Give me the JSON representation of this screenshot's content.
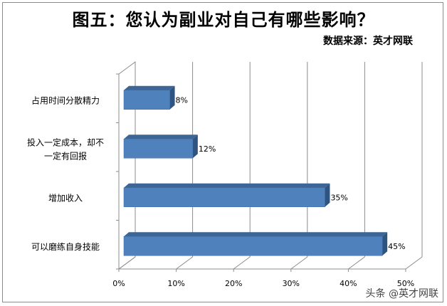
{
  "title": "图五：您认为副业对自己有哪些影响？",
  "source": "数据来源：英才网联",
  "watermark": "头条 @英才网联",
  "chart_data": {
    "type": "bar",
    "orientation": "horizontal",
    "style": "3d",
    "title": "图五：您认为副业对自己有哪些影响？",
    "subtitle": "数据来源：英才网联",
    "categories": [
      "占用时间分散精力",
      "投入一定成本，却不一定有回报",
      "增加收入",
      "可以磨练自身技能"
    ],
    "category_lines": [
      [
        "占用时间分散精力"
      ],
      [
        "投入一定成本，却不",
        "一定有回报"
      ],
      [
        "增加收入"
      ],
      [
        "可以磨练自身技能"
      ]
    ],
    "values": [
      8,
      12,
      35,
      45
    ],
    "data_labels": [
      "8%",
      "12%",
      "35%",
      "45%"
    ],
    "xlim": [
      0,
      50
    ],
    "xticks": [
      0,
      10,
      20,
      30,
      40,
      50
    ],
    "xtick_labels": [
      "0%",
      "10%",
      "20%",
      "30%",
      "40%",
      "50%"
    ],
    "grid": true,
    "legend": "none",
    "colors": {
      "bar_front": "#4f81bd",
      "bar_top": "#3d6696",
      "bar_side": "#2f5480",
      "grid": "#8c8c8c"
    }
  }
}
